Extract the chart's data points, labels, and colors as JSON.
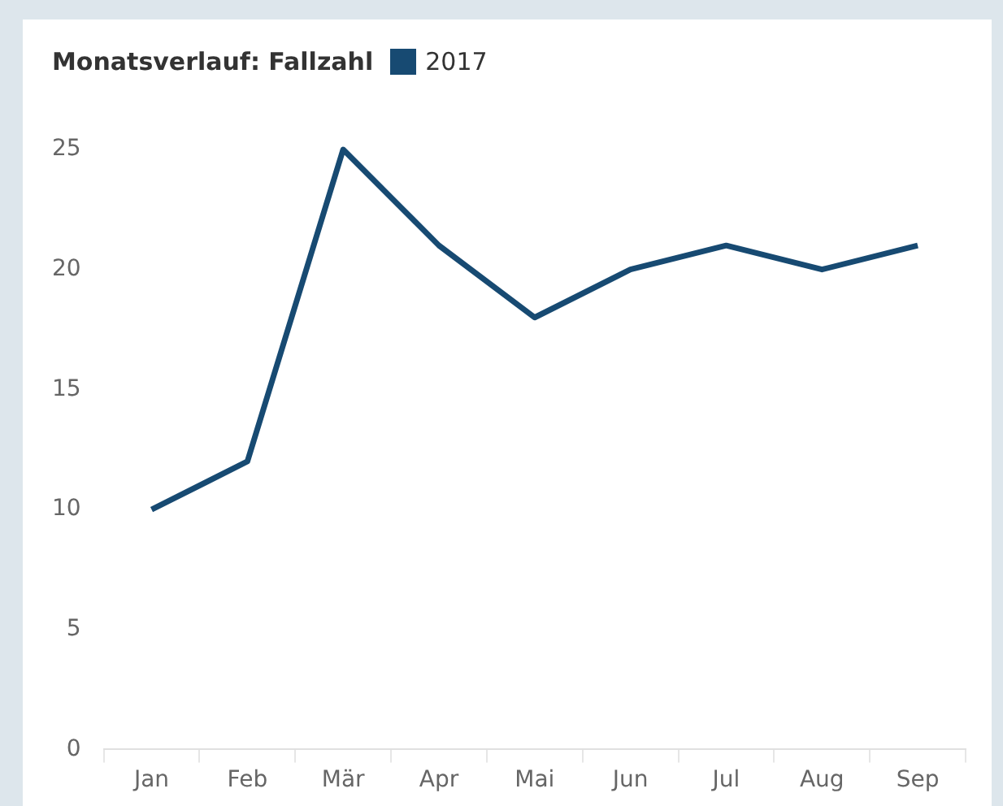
{
  "chart_data": {
    "type": "line",
    "title": "Monatsverlauf: Fallzahl",
    "categories": [
      "Jan",
      "Feb",
      "Mär",
      "Apr",
      "Mai",
      "Jun",
      "Jul",
      "Aug",
      "Sep"
    ],
    "series": [
      {
        "name": "2017",
        "color": "#174a72",
        "values": [
          10,
          12,
          25,
          21,
          18,
          20,
          21,
          20,
          21
        ]
      }
    ],
    "ylim": [
      0,
      25
    ],
    "yticks": [
      0,
      5,
      10,
      15,
      20,
      25
    ],
    "grid": false,
    "legend": "top left",
    "marker": "none",
    "line_style": "solid"
  }
}
